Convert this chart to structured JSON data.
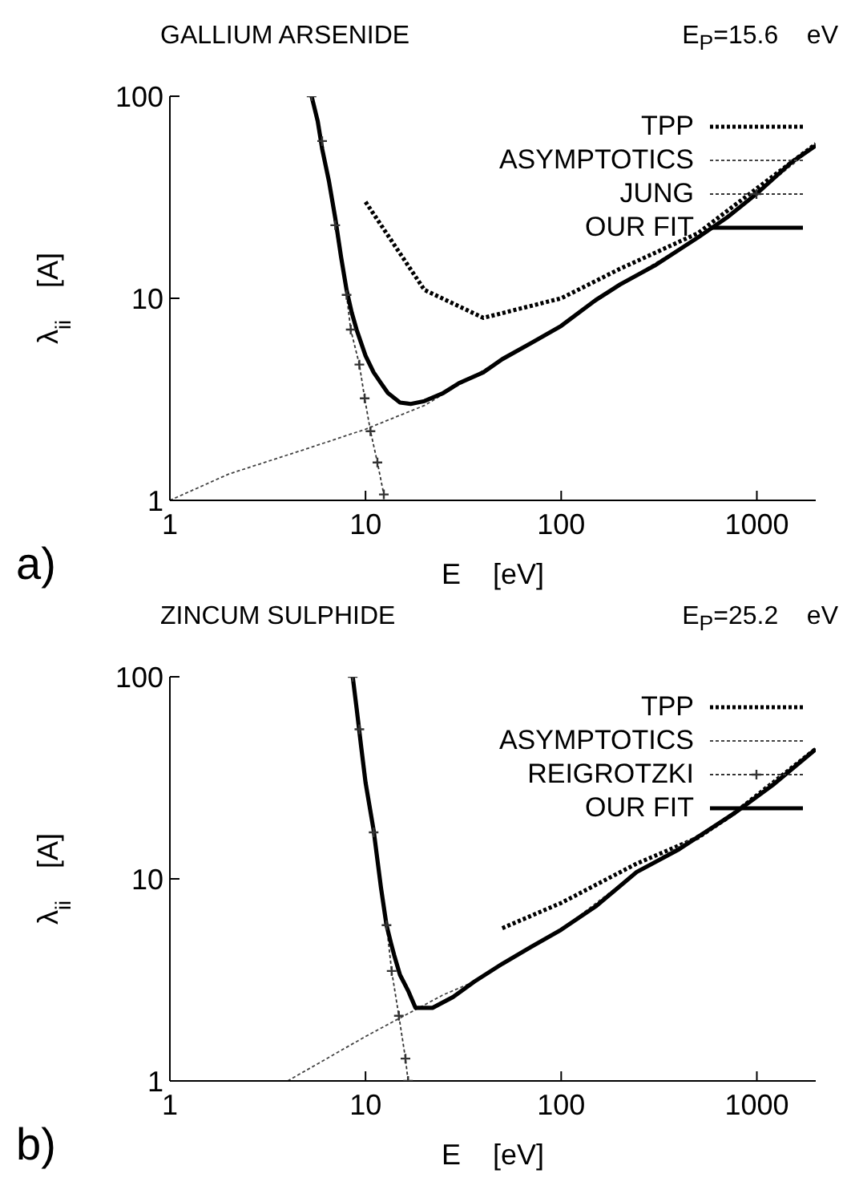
{
  "chart_data": [
    {
      "type": "line",
      "title": "GALLIUM ARSENIDE",
      "subtitle": "E$_{P}$=15.6    eV",
      "xlabel": "E    [eV]",
      "ylabel": "λ$_{ii}$    [A]",
      "annotations": [
        "a)"
      ],
      "log": "xy",
      "xlim": [
        1,
        2000
      ],
      "ylim": [
        1,
        100
      ],
      "xticks": [
        1,
        10,
        100,
        1000
      ],
      "yticks": [
        1,
        10,
        100
      ],
      "legend": "top right",
      "series": [
        {
          "name": "TPP",
          "color": "#000000",
          "line_style": "dotted",
          "marker": "none",
          "x": [
            10,
            20,
            40,
            100,
            200,
            500,
            1000,
            2000
          ],
          "values": [
            30,
            11,
            8,
            10,
            14,
            21,
            35,
            58
          ]
        },
        {
          "name": "ASYMPTOTICS",
          "color": "#444444",
          "line_style": "dotted",
          "marker": "none",
          "x": [
            1,
            2,
            5,
            10,
            20,
            50,
            100,
            200,
            500,
            1000,
            2000
          ],
          "values": [
            1,
            1.35,
            1.8,
            2.25,
            2.95,
            5,
            7.3,
            11.7,
            20,
            33,
            57
          ]
        },
        {
          "name": "JUNG",
          "color": "#333333",
          "line_style": "dotted",
          "marker": "cross",
          "x": [
            5.3,
            6,
            7,
            8,
            8.4,
            9.3,
            9.9,
            10.6,
            11.5,
            12.4
          ],
          "values": [
            100,
            60,
            23,
            10.4,
            7,
            4.7,
            3.2,
            2.2,
            1.54,
            1.07
          ]
        },
        {
          "name": "OUR FIT",
          "color": "#000000",
          "line_style": "solid",
          "marker": "none",
          "x": [
            5.3,
            5.7,
            6,
            6.5,
            7,
            7.5,
            8,
            8.5,
            9,
            10,
            11,
            12,
            13,
            15,
            17,
            20,
            25,
            30,
            40,
            50,
            70,
            100,
            150,
            200,
            300,
            500,
            700,
            1000,
            1500,
            2000
          ],
          "values": [
            100,
            75,
            55,
            38,
            25,
            16,
            11,
            8.5,
            7,
            5.2,
            4.3,
            3.8,
            3.4,
            3.05,
            3,
            3.1,
            3.4,
            3.8,
            4.3,
            5,
            6,
            7.3,
            9.8,
            11.7,
            14.5,
            20,
            25,
            33,
            47,
            57
          ]
        }
      ]
    },
    {
      "type": "line",
      "title": "ZINCUM SULPHIDE",
      "subtitle": "E$_{P}$=25.2    eV",
      "xlabel": "E    [eV]",
      "ylabel": "λ$_{ii}$    [A]",
      "annotations": [
        "b)"
      ],
      "log": "xy",
      "xlim": [
        1,
        2000
      ],
      "ylim": [
        1,
        100
      ],
      "xticks": [
        1,
        10,
        100,
        1000
      ],
      "yticks": [
        1,
        10,
        100
      ],
      "legend": "top right",
      "series": [
        {
          "name": "TPP",
          "color": "#000000",
          "line_style": "dotted",
          "marker": "none",
          "x": [
            50,
            100,
            243,
            500,
            760,
            2000
          ],
          "values": [
            5.7,
            7.6,
            11.9,
            16,
            21,
            44
          ]
        },
        {
          "name": "ASYMPTOTICS",
          "color": "#444444",
          "line_style": "dotted",
          "marker": "none",
          "x": [
            4,
            10,
            25,
            36,
            100,
            243,
            760,
            2000
          ],
          "values": [
            1,
            1.66,
            2.67,
            3.1,
            5.6,
            10.8,
            21,
            44
          ]
        },
        {
          "name": "REIGROTZKI",
          "color": "#333333",
          "line_style": "dotted",
          "marker": "cross",
          "x": [
            8.6,
            9.3,
            11,
            12.8,
            13.6,
            14.8,
            16,
            16.5
          ],
          "values": [
            100,
            55,
            17,
            5.9,
            3.5,
            2.1,
            1.29,
            1
          ]
        },
        {
          "name": "OUR FIT",
          "color": "#000000",
          "line_style": "solid",
          "marker": "none",
          "x": [
            8.6,
            9,
            9.5,
            10,
            11,
            12,
            12.8,
            13.5,
            14,
            15,
            16.5,
            18,
            20,
            22,
            28,
            36,
            50,
            70,
            100,
            150,
            243,
            400,
            760,
            1200,
            2000
          ],
          "values": [
            100,
            70,
            45,
            30,
            17.4,
            9,
            5.9,
            4.8,
            4.2,
            3.35,
            2.8,
            2.3,
            2.3,
            2.3,
            2.6,
            3.1,
            3.8,
            4.6,
            5.6,
            7.3,
            10.8,
            14,
            21,
            29,
            43.8
          ]
        }
      ]
    }
  ]
}
